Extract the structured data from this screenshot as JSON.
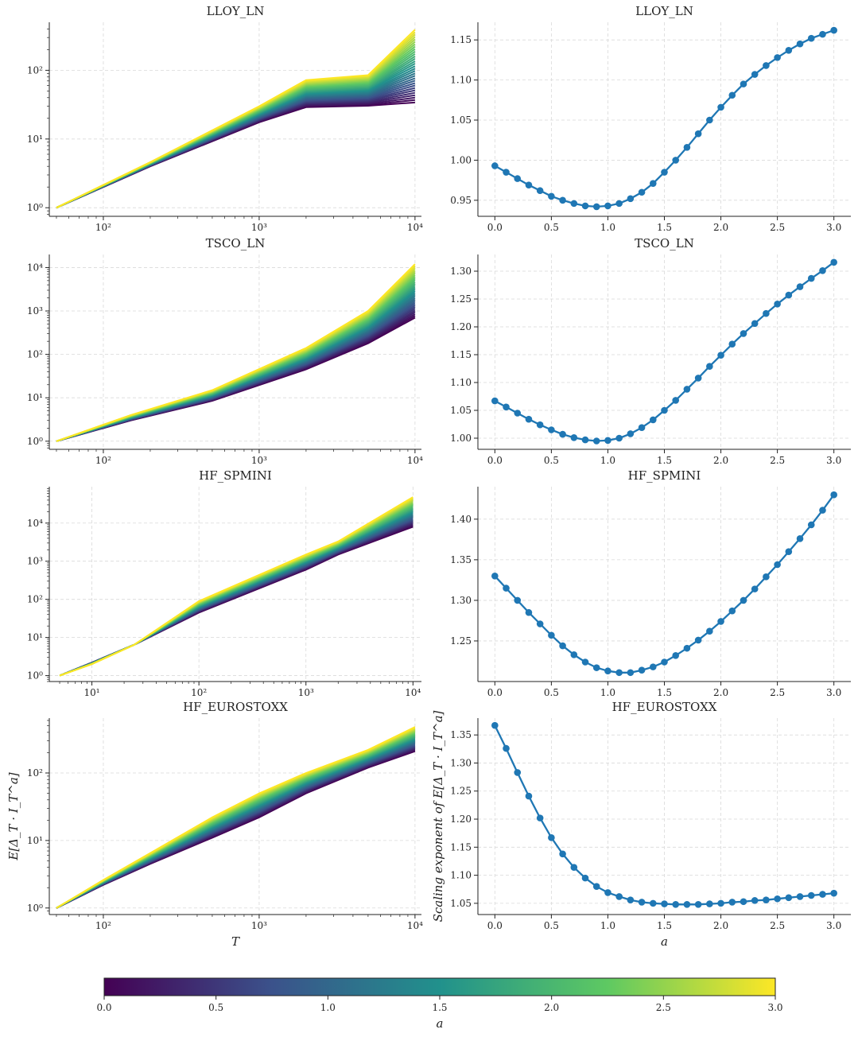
{
  "colormap": {
    "name": "viridis",
    "stops": [
      "#440154",
      "#3b528b",
      "#21918c",
      "#5ec962",
      "#fde725"
    ]
  },
  "marker_color": "#1f77b4",
  "chart_data": [
    {
      "type": "line",
      "panel": "left",
      "title": "LLOY_LN",
      "xscale": "log",
      "yscale": "log",
      "xlim": [
        45,
        11000
      ],
      "ylim": [
        0.75,
        500
      ],
      "x": [
        50,
        200,
        1000,
        2000,
        5000,
        10000
      ],
      "series_low": [
        1,
        4,
        17.5,
        29,
        30.5,
        34
      ],
      "series_high": [
        1,
        4.6,
        30,
        72,
        85,
        390
      ],
      "series_count": 31,
      "xticks": [
        "10²",
        "10³",
        "10⁴"
      ],
      "yticks": [
        "10⁰",
        "10¹",
        "10²"
      ]
    },
    {
      "type": "line",
      "panel": "right",
      "title": "LLOY_LN",
      "xlabel": "",
      "ylabel": "",
      "xlim": [
        -0.15,
        3.15
      ],
      "ylim": [
        0.93,
        1.172
      ],
      "x": [
        0.0,
        0.1,
        0.2,
        0.3,
        0.4,
        0.5,
        0.6,
        0.7,
        0.8,
        0.9,
        1.0,
        1.1,
        1.2,
        1.3,
        1.4,
        1.5,
        1.6,
        1.7,
        1.8,
        1.9,
        2.0,
        2.1,
        2.2,
        2.3,
        2.4,
        2.5,
        2.6,
        2.7,
        2.8,
        2.9,
        3.0
      ],
      "y": [
        0.993,
        0.985,
        0.977,
        0.969,
        0.962,
        0.955,
        0.95,
        0.946,
        0.943,
        0.942,
        0.943,
        0.946,
        0.952,
        0.96,
        0.971,
        0.985,
        1.0,
        1.016,
        1.033,
        1.05,
        1.066,
        1.081,
        1.095,
        1.107,
        1.118,
        1.128,
        1.137,
        1.145,
        1.152,
        1.157,
        1.162
      ],
      "xticks": [
        "0.0",
        "0.5",
        "1.0",
        "1.5",
        "2.0",
        "2.5",
        "3.0"
      ],
      "yticks": [
        "0.95",
        "1.00",
        "1.05",
        "1.10",
        "1.15"
      ]
    },
    {
      "type": "line",
      "panel": "left",
      "title": "TSCO_LN",
      "xscale": "log",
      "yscale": "log",
      "xlim": [
        45,
        11000
      ],
      "ylim": [
        0.65,
        20000
      ],
      "x": [
        50,
        150,
        500,
        2000,
        5000,
        10000
      ],
      "series_low": [
        1,
        3,
        8.5,
        45,
        180,
        700
      ],
      "series_high": [
        1,
        4,
        15,
        140,
        1000,
        12000
      ],
      "series_count": 31,
      "xticks": [
        "10²",
        "10³",
        "10⁴"
      ],
      "yticks": [
        "10⁰",
        "10¹",
        "10²",
        "10³",
        "10⁴"
      ]
    },
    {
      "type": "line",
      "panel": "right",
      "title": "TSCO_LN",
      "xlabel": "",
      "ylabel": "",
      "xlim": [
        -0.15,
        3.15
      ],
      "ylim": [
        0.98,
        1.33
      ],
      "x": [
        0.0,
        0.1,
        0.2,
        0.3,
        0.4,
        0.5,
        0.6,
        0.7,
        0.8,
        0.9,
        1.0,
        1.1,
        1.2,
        1.3,
        1.4,
        1.5,
        1.6,
        1.7,
        1.8,
        1.9,
        2.0,
        2.1,
        2.2,
        2.3,
        2.4,
        2.5,
        2.6,
        2.7,
        2.8,
        2.9,
        3.0
      ],
      "y": [
        1.067,
        1.056,
        1.045,
        1.034,
        1.024,
        1.015,
        1.007,
        1.001,
        0.997,
        0.995,
        0.996,
        1.0,
        1.008,
        1.019,
        1.033,
        1.05,
        1.068,
        1.088,
        1.108,
        1.129,
        1.149,
        1.169,
        1.188,
        1.206,
        1.224,
        1.241,
        1.257,
        1.272,
        1.287,
        1.301,
        1.316
      ],
      "xticks": [
        "0.0",
        "0.5",
        "1.0",
        "1.5",
        "2.0",
        "2.5",
        "3.0"
      ],
      "yticks": [
        "1.00",
        "1.05",
        "1.10",
        "1.15",
        "1.20",
        "1.25",
        "1.30"
      ]
    },
    {
      "type": "line",
      "panel": "left",
      "title": "HF_SPMINI",
      "xscale": "log",
      "yscale": "log",
      "xlim": [
        4,
        12000
      ],
      "ylim": [
        0.7,
        90000
      ],
      "x": [
        5,
        10,
        25,
        100,
        1000,
        2000,
        10000
      ],
      "series_low": [
        1,
        2.2,
        6.5,
        45,
        600,
        1500,
        8000
      ],
      "series_high": [
        1,
        2.0,
        6.5,
        90,
        1500,
        3300,
        48000
      ],
      "series_count": 31,
      "xticks": [
        "10¹",
        "10²",
        "10³",
        "10⁴"
      ],
      "yticks": [
        "10⁰",
        "10¹",
        "10²",
        "10³",
        "10⁴"
      ]
    },
    {
      "type": "line",
      "panel": "right",
      "title": "HF_SPMINI",
      "xlabel": "",
      "ylabel": "",
      "xlim": [
        -0.15,
        3.15
      ],
      "ylim": [
        1.2,
        1.44
      ],
      "x": [
        0.0,
        0.1,
        0.2,
        0.3,
        0.4,
        0.5,
        0.6,
        0.7,
        0.8,
        0.9,
        1.0,
        1.1,
        1.2,
        1.3,
        1.4,
        1.5,
        1.6,
        1.7,
        1.8,
        1.9,
        2.0,
        2.1,
        2.2,
        2.3,
        2.4,
        2.5,
        2.6,
        2.7,
        2.8,
        2.9,
        3.0
      ],
      "y": [
        1.33,
        1.315,
        1.3,
        1.285,
        1.271,
        1.257,
        1.244,
        1.233,
        1.224,
        1.217,
        1.213,
        1.211,
        1.211,
        1.214,
        1.218,
        1.224,
        1.232,
        1.241,
        1.251,
        1.262,
        1.274,
        1.287,
        1.3,
        1.314,
        1.329,
        1.344,
        1.36,
        1.376,
        1.393,
        1.411,
        1.43
      ],
      "xticks": [
        "0.0",
        "0.5",
        "1.0",
        "1.5",
        "2.0",
        "2.5",
        "3.0"
      ],
      "yticks": [
        "1.25",
        "1.30",
        "1.35",
        "1.40"
      ]
    },
    {
      "type": "line",
      "panel": "left",
      "title": "HF_EUROSTOXX",
      "xlabel": "T",
      "ylabel": "E[Δ_T · I_T^a]",
      "xscale": "log",
      "yscale": "log",
      "xlim": [
        45,
        11000
      ],
      "ylim": [
        0.8,
        650
      ],
      "x": [
        50,
        100,
        200,
        500,
        1000,
        2000,
        5000,
        10000
      ],
      "series_low": [
        1,
        2.2,
        4.5,
        11,
        22,
        50,
        120,
        210
      ],
      "series_high": [
        1,
        2.6,
        6.5,
        22,
        50,
        100,
        220,
        480
      ],
      "series_count": 31,
      "xticks": [
        "10²",
        "10³",
        "10⁴"
      ],
      "yticks": [
        "10⁰",
        "10¹",
        "10²"
      ]
    },
    {
      "type": "line",
      "panel": "right",
      "title": "HF_EUROSTOXX",
      "xlabel": "a",
      "ylabel": "Scaling exponent of E[Δ_T · I_T^a]",
      "xlim": [
        -0.15,
        3.15
      ],
      "ylim": [
        1.03,
        1.38
      ],
      "x": [
        0.0,
        0.1,
        0.2,
        0.3,
        0.4,
        0.5,
        0.6,
        0.7,
        0.8,
        0.9,
        1.0,
        1.1,
        1.2,
        1.3,
        1.4,
        1.5,
        1.6,
        1.7,
        1.8,
        1.9,
        2.0,
        2.1,
        2.2,
        2.3,
        2.4,
        2.5,
        2.6,
        2.7,
        2.8,
        2.9,
        3.0
      ],
      "y": [
        1.367,
        1.326,
        1.283,
        1.241,
        1.202,
        1.167,
        1.138,
        1.114,
        1.095,
        1.08,
        1.069,
        1.062,
        1.056,
        1.052,
        1.05,
        1.049,
        1.048,
        1.048,
        1.048,
        1.049,
        1.05,
        1.052,
        1.053,
        1.055,
        1.056,
        1.058,
        1.06,
        1.062,
        1.064,
        1.066,
        1.068
      ],
      "xticks": [
        "0.0",
        "0.5",
        "1.0",
        "1.5",
        "2.0",
        "2.5",
        "3.0"
      ],
      "yticks": [
        "1.05",
        "1.10",
        "1.15",
        "1.20",
        "1.25",
        "1.30",
        "1.35"
      ]
    }
  ],
  "colorbar": {
    "label": "a",
    "ticks": [
      "0.0",
      "0.5",
      "1.0",
      "1.5",
      "2.0",
      "2.5",
      "3.0"
    ],
    "range": [
      0,
      3
    ]
  }
}
